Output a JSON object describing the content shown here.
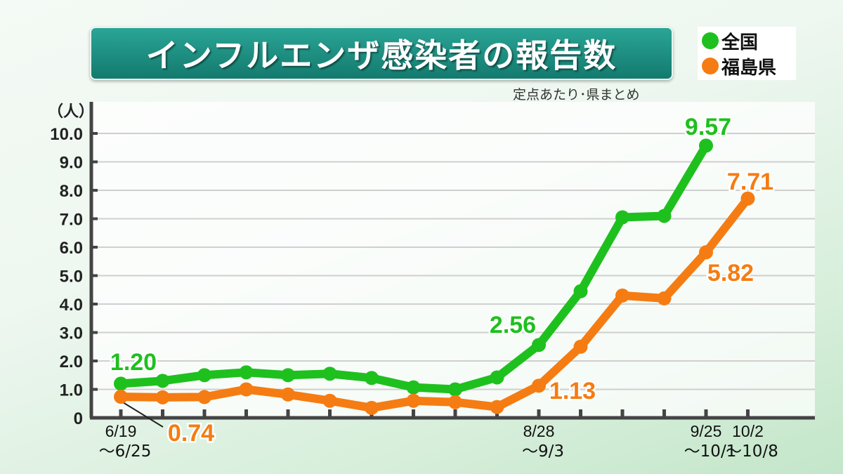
{
  "title": "インフルエンザ感染者の報告数",
  "subtitle": "定点あたり･県まとめ",
  "colors": {
    "national": "#1ec01e",
    "fukushima": "#f57c12"
  },
  "chart_data": {
    "type": "line",
    "title": "インフルエンザ感染者の報告数",
    "ylabel": "（人）",
    "ylim": [
      0,
      10
    ],
    "yticks": [
      "0",
      "1.0",
      "2.0",
      "3.0",
      "4.0",
      "5.0",
      "6.0",
      "7.0",
      "8.0",
      "9.0",
      "10.0"
    ],
    "grid": true,
    "legend_position": "top-right",
    "x_labels": [
      {
        "index": 0,
        "line1": "6/19",
        "line2": "～6/25"
      },
      {
        "index": 10,
        "line1": "8/28",
        "line2": "～9/3"
      },
      {
        "index": 14,
        "line1": "9/25",
        "line2": "～10/1"
      },
      {
        "index": 15,
        "line1": "10/2",
        "line2": "～10/8"
      }
    ],
    "weeks": 16,
    "series": [
      {
        "name": "全国",
        "color": "#1ec01e",
        "values": [
          1.2,
          1.3,
          1.5,
          1.6,
          1.5,
          1.55,
          1.4,
          1.07,
          1.0,
          1.42,
          2.56,
          4.45,
          7.05,
          7.1,
          9.57
        ],
        "labels": [
          {
            "index": 0,
            "text": "1.20"
          },
          {
            "index": 10,
            "text": "2.56"
          },
          {
            "index": 14,
            "text": "9.57"
          }
        ]
      },
      {
        "name": "福島県",
        "color": "#f57c12",
        "values": [
          0.74,
          0.72,
          0.73,
          1.0,
          0.82,
          0.6,
          0.35,
          0.6,
          0.55,
          0.38,
          1.13,
          2.5,
          4.3,
          4.2,
          5.82,
          7.71
        ],
        "labels": [
          {
            "index": 0,
            "text": "0.74"
          },
          {
            "index": 10,
            "text": "1.13"
          },
          {
            "index": 14,
            "text": "5.82"
          },
          {
            "index": 15,
            "text": "7.71"
          }
        ]
      }
    ]
  }
}
